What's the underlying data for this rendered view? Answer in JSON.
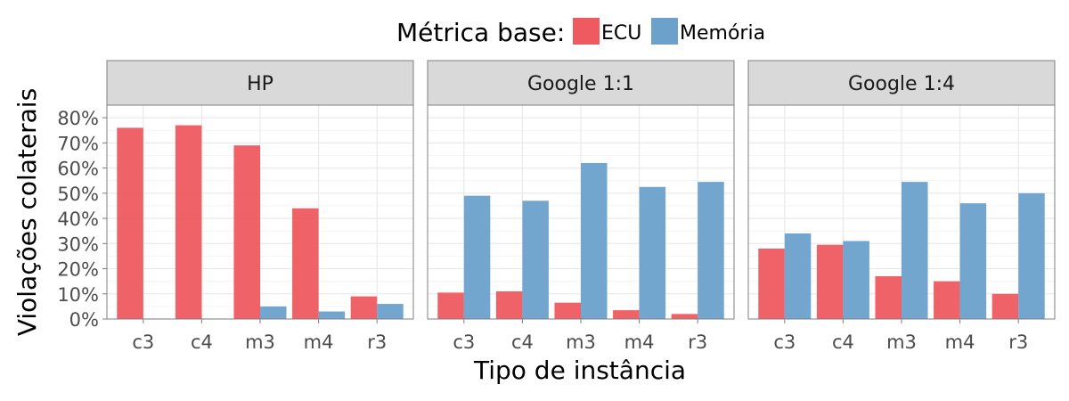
{
  "chart_data": {
    "type": "bar",
    "xlabel": "Tipo de instância",
    "ylabel": "Violações colaterais",
    "ylim": [
      0,
      0.85
    ],
    "y_ticks": [
      0,
      0.1,
      0.2,
      0.3,
      0.4,
      0.5,
      0.6,
      0.7,
      0.8
    ],
    "y_tick_labels": [
      "0%",
      "10%",
      "20%",
      "30%",
      "40%",
      "50%",
      "60%",
      "70%",
      "80%"
    ],
    "legend": {
      "title": "Métrica base:",
      "position": "top",
      "entries": [
        {
          "name": "ECU",
          "color": "#ee5a5f"
        },
        {
          "name": "Memória",
          "color": "#6ca1cc"
        }
      ]
    },
    "categories": [
      "c3",
      "c4",
      "m3",
      "m4",
      "r3"
    ],
    "panels": [
      {
        "title": "HP",
        "series": [
          {
            "name": "ECU",
            "values": [
              0.76,
              0.77,
              0.69,
              0.44,
              0.09
            ]
          },
          {
            "name": "Memória",
            "values": [
              0.002,
              0.002,
              0.05,
              0.03,
              0.06
            ]
          }
        ]
      },
      {
        "title": "Google 1:1",
        "series": [
          {
            "name": "ECU",
            "values": [
              0.105,
              0.11,
              0.065,
              0.035,
              0.02
            ]
          },
          {
            "name": "Memória",
            "values": [
              0.49,
              0.47,
              0.62,
              0.525,
              0.545
            ]
          }
        ]
      },
      {
        "title": "Google 1:4",
        "series": [
          {
            "name": "ECU",
            "values": [
              0.28,
              0.295,
              0.17,
              0.15,
              0.1
            ]
          },
          {
            "name": "Memória",
            "values": [
              0.34,
              0.31,
              0.545,
              0.46,
              0.5
            ]
          }
        ]
      }
    ],
    "grid": true
  }
}
